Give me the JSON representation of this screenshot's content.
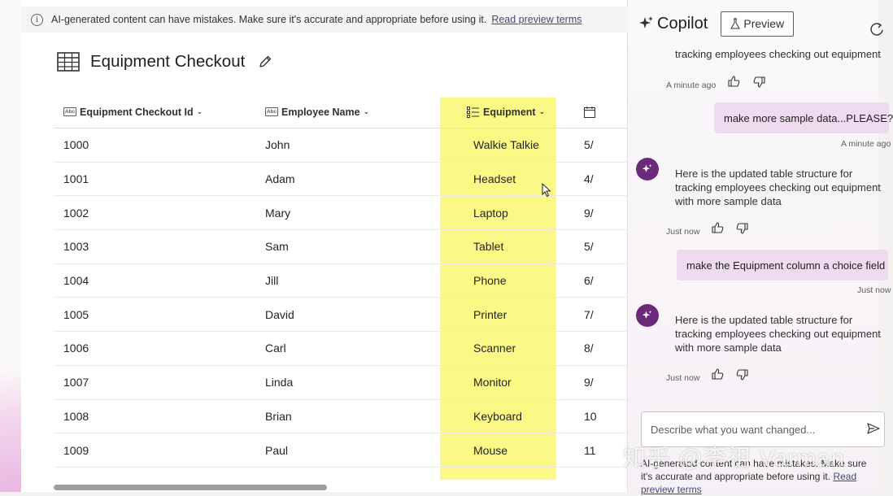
{
  "notice": {
    "text": "AI-generated content can have mistakes. Make sure it's accurate and appropriate before using it.",
    "link": "Read preview terms"
  },
  "page": {
    "title": "Equipment Checkout"
  },
  "table": {
    "columns": [
      {
        "label": "Equipment Checkout Id",
        "type_icon": "text-type-icon"
      },
      {
        "label": "Employee Name",
        "type_icon": "text-type-icon"
      },
      {
        "label": "Equipment",
        "type_icon": "choice-type-icon"
      },
      {
        "label": "",
        "type_icon": "date-type-icon"
      }
    ],
    "rows": [
      {
        "id": "1000",
        "name": "John",
        "equipment": "Walkie Talkie",
        "date": "5/"
      },
      {
        "id": "1001",
        "name": "Adam",
        "equipment": "Headset",
        "date": "4/"
      },
      {
        "id": "1002",
        "name": "Mary",
        "equipment": "Laptop",
        "date": "9/"
      },
      {
        "id": "1003",
        "name": "Sam",
        "equipment": "Tablet",
        "date": "5/"
      },
      {
        "id": "1004",
        "name": "Jill",
        "equipment": "Phone",
        "date": "6/"
      },
      {
        "id": "1005",
        "name": "David",
        "equipment": "Printer",
        "date": "7/"
      },
      {
        "id": "1006",
        "name": "Carl",
        "equipment": "Scanner",
        "date": "8/"
      },
      {
        "id": "1007",
        "name": "Linda",
        "equipment": "Monitor",
        "date": "9/"
      },
      {
        "id": "1008",
        "name": "Brian",
        "equipment": "Keyboard",
        "date": "10"
      },
      {
        "id": "1009",
        "name": "Paul",
        "equipment": "Mouse",
        "date": "11"
      }
    ],
    "highlight_color": "#fbf97c"
  },
  "copilot": {
    "title": "Copilot",
    "preview_label": "Preview",
    "messages": {
      "frag_text": "tracking employees checking out equipment",
      "ts_1": "A minute ago",
      "user_1": "make more sample data...PLEASE?",
      "ts_2": "A minute ago",
      "bot_1": "Here is the updated table structure for tracking employees checking out equipment with more sample data",
      "ts_3": "Just now",
      "user_2": "make the Equipment column a choice field",
      "ts_4": "Just now",
      "bot_2": "Here is the updated table structure for tracking employees checking out equipment with more sample data",
      "ts_5": "Just now"
    },
    "input_placeholder": "Describe what you want changed...",
    "footer_text": "AI-generated content can have mistakes. Make sure it's accurate and appropriate before using it.",
    "footer_link": "Read preview terms",
    "accent_color": "#6b2a7a",
    "user_bubble_color": "#efdbf0"
  },
  "watermark": "知乎 @李祖 Varman"
}
